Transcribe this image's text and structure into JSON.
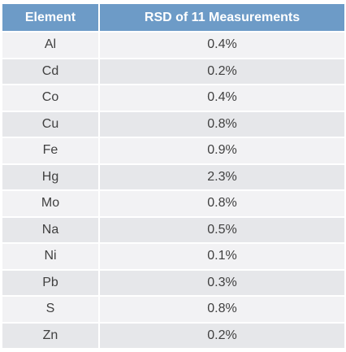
{
  "table": {
    "headers": [
      "Element",
      "RSD of 11 Measurements"
    ],
    "rows": [
      [
        "Al",
        "0.4%"
      ],
      [
        "Cd",
        "0.2%"
      ],
      [
        "Co",
        "0.4%"
      ],
      [
        "Cu",
        "0.8%"
      ],
      [
        "Fe",
        "0.9%"
      ],
      [
        "Hg",
        "2.3%"
      ],
      [
        "Mo",
        "0.8%"
      ],
      [
        "Na",
        "0.5%"
      ],
      [
        "Ni",
        "0.1%"
      ],
      [
        "Pb",
        "0.3%"
      ],
      [
        "S",
        "0.8%"
      ],
      [
        "Zn",
        "0.2%"
      ]
    ]
  }
}
